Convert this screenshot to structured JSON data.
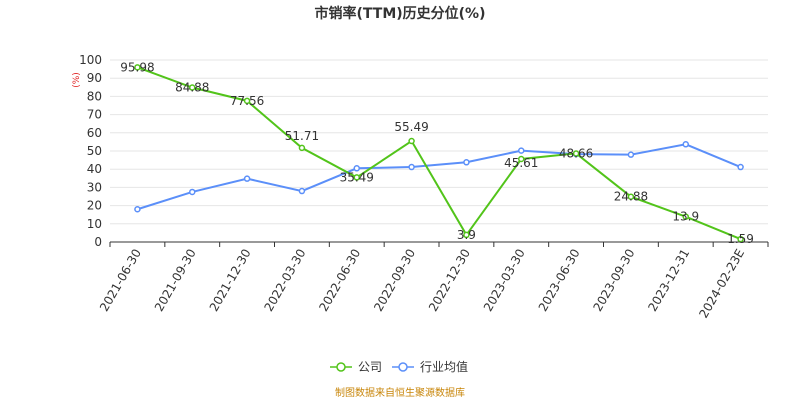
{
  "chart_data": {
    "type": "line",
    "title": "市销率(TTM)历史分位(%)",
    "unit_label": "(%)",
    "categories": [
      "2021-06-30",
      "2021-09-30",
      "2021-12-30",
      "2022-03-30",
      "2022-06-30",
      "2022-09-30",
      "2022-12-30",
      "2023-03-30",
      "2023-06-30",
      "2023-09-30",
      "2023-12-31",
      "2024-02-23E"
    ],
    "series": [
      {
        "name": "公司",
        "color": "#52c41a",
        "values": [
          95.98,
          84.88,
          77.56,
          51.71,
          35.49,
          55.49,
          3.9,
          45.61,
          48.66,
          24.88,
          13.9,
          1.59
        ],
        "labels": [
          "95.98",
          "84.88",
          "77.56",
          "51.71",
          "35.49",
          "55.49",
          "3.9",
          "45.61",
          "48.66",
          "24.88",
          "13.9",
          "1.59"
        ]
      },
      {
        "name": "行业均值",
        "color": "#5b8ff9",
        "values": [
          18,
          27.5,
          34.8,
          28,
          40.5,
          41.2,
          43.8,
          50.2,
          48.3,
          48,
          53.7,
          41.2
        ]
      }
    ],
    "ylim": [
      0,
      100
    ],
    "yticks": [
      0,
      10,
      20,
      30,
      40,
      50,
      60,
      70,
      80,
      90,
      100
    ],
    "grid": true,
    "legend_position": "bottom"
  },
  "source_note": "制图数据来自恒生聚源数据库"
}
